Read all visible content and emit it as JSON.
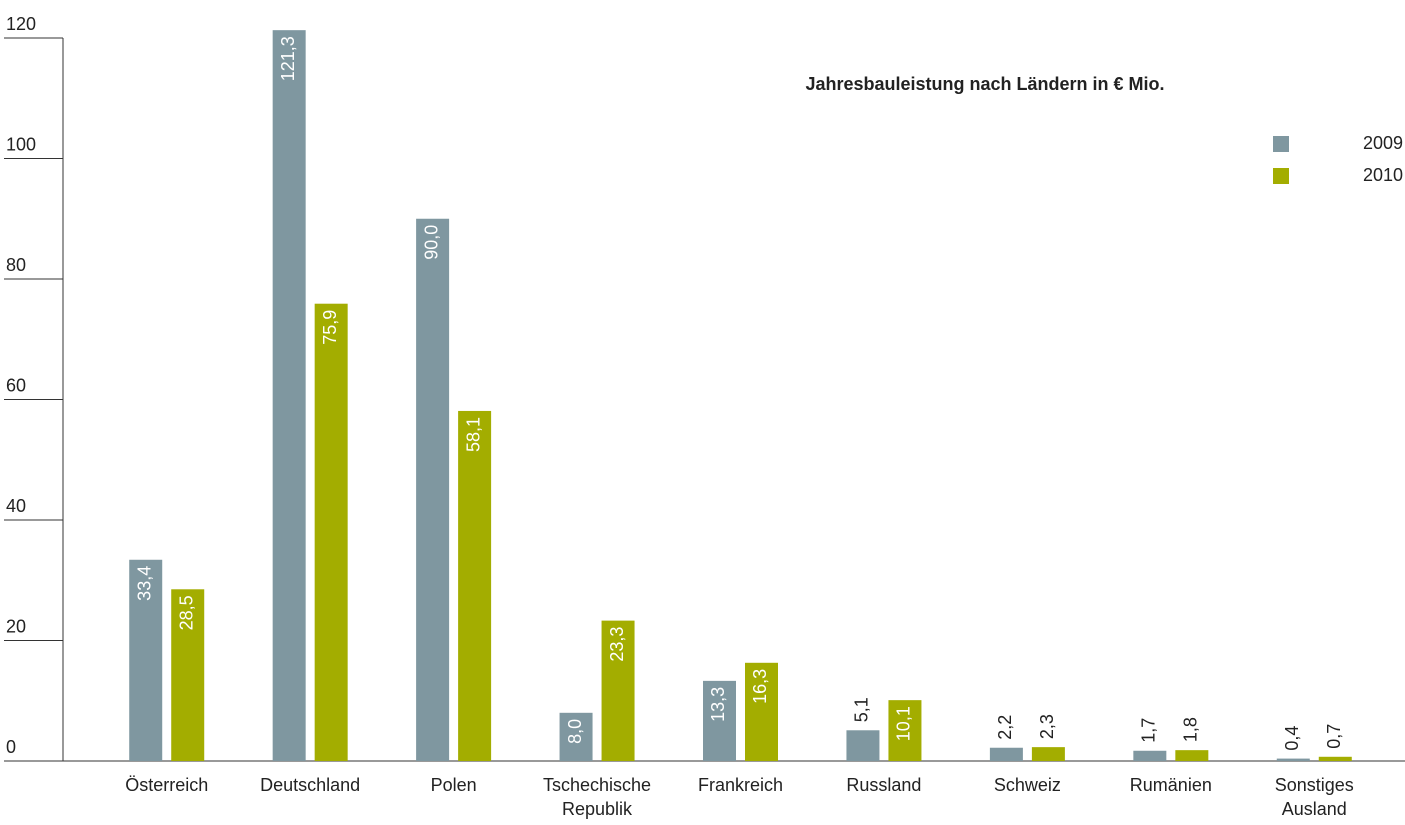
{
  "chart_data": {
    "type": "bar",
    "title": "Jahresbauleistung nach Ländern in € Mio.",
    "categories": [
      "Österreich",
      "Deutschland",
      "Polen",
      "Tschechische Republik",
      "Frankreich",
      "Russland",
      "Schweiz",
      "Rumänien",
      "Sonstiges Ausland"
    ],
    "series": [
      {
        "name": "2009",
        "color": "#7f97a0",
        "values": [
          33.4,
          121.3,
          90.0,
          8.0,
          13.3,
          5.1,
          2.2,
          1.7,
          0.4
        ],
        "value_labels": [
          "33,4",
          "121,3",
          "90,0",
          "8,0",
          "13,3",
          "5,1",
          "2,2",
          "1,7",
          "0,4"
        ]
      },
      {
        "name": "2010",
        "color": "#a3ad00",
        "values": [
          28.5,
          75.9,
          58.1,
          23.3,
          16.3,
          10.1,
          2.3,
          1.8,
          0.7
        ],
        "value_labels": [
          "28,5",
          "75,9",
          "58,1",
          "23,3",
          "16,3",
          "10,1",
          "2,3",
          "1,8",
          "0,7"
        ]
      }
    ],
    "ylim": [
      0,
      120
    ],
    "yticks": [
      0,
      20,
      40,
      60,
      80,
      100,
      120
    ],
    "legend": "top-right"
  }
}
